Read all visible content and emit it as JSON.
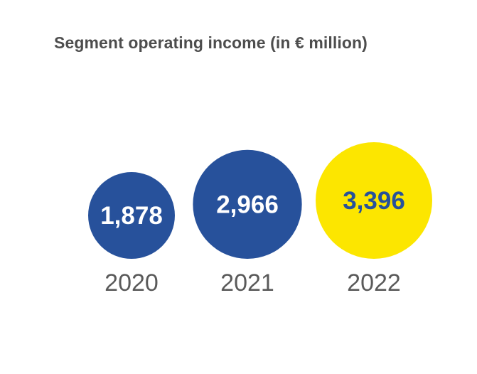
{
  "chart_data": {
    "type": "bubble",
    "title": "Segment operating income (in € million)",
    "categories": [
      "2020",
      "2021",
      "2022"
    ],
    "values": [
      1878,
      2966,
      3396
    ],
    "value_labels": [
      "1,878",
      "2,966",
      "3,396"
    ],
    "colors": {
      "bubbles": [
        "#27519b",
        "#27519b",
        "#fce600"
      ],
      "value_text": [
        "#ffffff",
        "#ffffff",
        "#27519b"
      ],
      "year_text": "#5a5a5a",
      "title_text": "#4d4d4d"
    },
    "grid": false,
    "legend": "none"
  }
}
